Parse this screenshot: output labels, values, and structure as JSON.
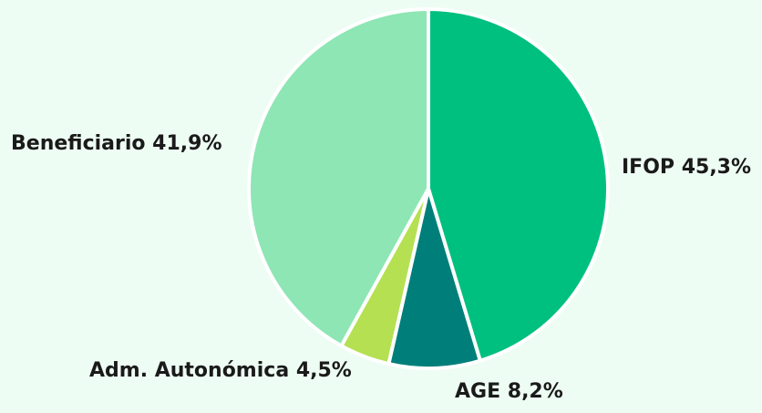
{
  "chart_data": {
    "type": "pie",
    "title": "",
    "slices": [
      {
        "name": "IFOP",
        "value": 45.3,
        "label": "IFOP 45,3%",
        "color": "#00c080"
      },
      {
        "name": "AGE",
        "value": 8.2,
        "label": "AGE 8,2%",
        "color": "#007f7a"
      },
      {
        "name": "Adm. Autonómica",
        "value": 4.5,
        "label": "Adm. Autonómica 4,5%",
        "color": "#b4e052"
      },
      {
        "name": "Beneficiario",
        "value": 41.9,
        "label": "Beneficiario 41,9%",
        "color": "#8de6b4"
      }
    ],
    "start_angle": "12 o'clock",
    "direction": "clockwise"
  }
}
